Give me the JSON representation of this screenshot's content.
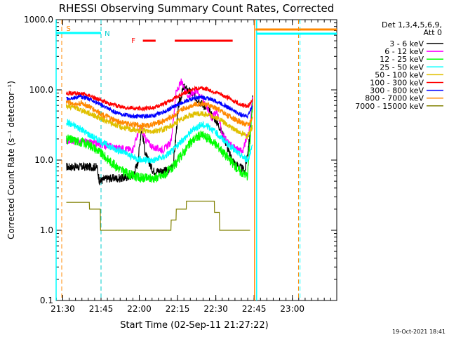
{
  "chart_data": {
    "type": "line",
    "title": "RHESSI Observing Summary Count Rates, Corrected",
    "xlabel": "Start Time (02-Sep-11 21:27:22)",
    "ylabel": "Corrected Count Rate (s⁻¹ detector⁻¹)",
    "yscale": "log",
    "ylim": [
      0.1,
      1000
    ],
    "xlim_min": [
      0,
      110
    ],
    "x_ticks": [
      {
        "label": "21:30",
        "min": 2.6
      },
      {
        "label": "21:45",
        "min": 17.6
      },
      {
        "label": "22:00",
        "min": 32.6
      },
      {
        "label": "22:15",
        "min": 47.6
      },
      {
        "label": "22:30",
        "min": 62.6
      },
      {
        "label": "22:45",
        "min": 77.6
      },
      {
        "label": "23:00",
        "min": 92.6
      }
    ],
    "y_ticks": [
      {
        "label": "0.1",
        "value": 0.1
      },
      {
        "label": "1.0",
        "value": 1
      },
      {
        "label": "10.0",
        "value": 10
      },
      {
        "label": "100.0",
        "value": 100
      },
      {
        "label": "1000.0",
        "value": 1000
      }
    ],
    "legend_header": [
      "Det 1,3,4,5,6,9,",
      "Att 0"
    ],
    "legend": [
      {
        "label": "3 - 6 keV",
        "color": "#000000"
      },
      {
        "label": "6 - 12 keV",
        "color": "#ff00ff"
      },
      {
        "label": "12 - 25 keV",
        "color": "#00ff00"
      },
      {
        "label": "25 - 50 keV",
        "color": "#00ffff"
      },
      {
        "label": "50 - 100 keV",
        "color": "#e0c000"
      },
      {
        "label": "100 - 300 keV",
        "color": "#ff0000"
      },
      {
        "label": "300 - 800 keV",
        "color": "#0000ff"
      },
      {
        "label": "800 - 7000 keV",
        "color": "#ff8800"
      },
      {
        "label": "7000 - 15000 keV",
        "color": "#808000"
      }
    ],
    "series": [
      {
        "name": "3 - 6 keV",
        "color": "#000000",
        "noise": 0.06,
        "points": [
          [
            4,
            8
          ],
          [
            16,
            8
          ],
          [
            17,
            5
          ],
          [
            20,
            5.5
          ],
          [
            26,
            5.5
          ],
          [
            30,
            6
          ],
          [
            32,
            9
          ],
          [
            33.5,
            30
          ],
          [
            35,
            12
          ],
          [
            38,
            7
          ],
          [
            44,
            7
          ],
          [
            46,
            9
          ],
          [
            48,
            60
          ],
          [
            50,
            110
          ],
          [
            53,
            90
          ],
          [
            56,
            70
          ],
          [
            58,
            60
          ],
          [
            62,
            40
          ],
          [
            64,
            30
          ],
          [
            66,
            20
          ],
          [
            68,
            12
          ],
          [
            70,
            9
          ],
          [
            72,
            8
          ],
          [
            74,
            7
          ],
          [
            76,
            22
          ],
          [
            77,
            80
          ]
        ]
      },
      {
        "name": "6 - 12 keV",
        "color": "#ff00ff",
        "noise": 0.05,
        "points": [
          [
            4,
            19
          ],
          [
            12,
            18
          ],
          [
            16,
            17
          ],
          [
            20,
            16
          ],
          [
            24,
            15
          ],
          [
            30,
            14
          ],
          [
            33,
            30
          ],
          [
            35,
            20
          ],
          [
            38,
            15
          ],
          [
            42,
            14
          ],
          [
            45,
            18
          ],
          [
            47,
            90
          ],
          [
            49,
            130
          ],
          [
            52,
            80
          ],
          [
            55,
            100
          ],
          [
            58,
            70
          ],
          [
            61,
            40
          ],
          [
            63,
            50
          ],
          [
            65,
            25
          ],
          [
            67,
            18
          ],
          [
            70,
            15
          ],
          [
            73,
            13
          ],
          [
            76,
            30
          ],
          [
            77,
            80
          ]
        ]
      },
      {
        "name": "12 - 25 keV",
        "color": "#00ff00",
        "noise": 0.07,
        "points": [
          [
            4,
            20
          ],
          [
            10,
            18
          ],
          [
            14,
            16
          ],
          [
            18,
            12
          ],
          [
            22,
            9
          ],
          [
            26,
            7
          ],
          [
            30,
            6
          ],
          [
            34,
            5.5
          ],
          [
            38,
            5.5
          ],
          [
            42,
            6
          ],
          [
            46,
            8
          ],
          [
            50,
            13
          ],
          [
            54,
            20
          ],
          [
            57,
            23
          ],
          [
            60,
            20
          ],
          [
            64,
            15
          ],
          [
            68,
            10
          ],
          [
            72,
            7
          ],
          [
            75,
            6
          ],
          [
            77,
            60
          ]
        ]
      },
      {
        "name": "25 - 50 keV",
        "color": "#00ffff",
        "noise": 0.05,
        "points": [
          [
            4,
            35
          ],
          [
            8,
            30
          ],
          [
            14,
            22
          ],
          [
            18,
            18
          ],
          [
            22,
            15
          ],
          [
            26,
            13
          ],
          [
            30,
            11
          ],
          [
            34,
            10
          ],
          [
            38,
            10
          ],
          [
            42,
            11
          ],
          [
            46,
            14
          ],
          [
            50,
            20
          ],
          [
            54,
            28
          ],
          [
            57,
            32
          ],
          [
            60,
            30
          ],
          [
            64,
            22
          ],
          [
            68,
            16
          ],
          [
            72,
            12
          ],
          [
            75,
            10
          ],
          [
            77,
            15
          ]
        ]
      },
      {
        "name": "50 - 100 keV",
        "color": "#e0c000",
        "noise": 0.04,
        "points": [
          [
            4,
            60
          ],
          [
            8,
            55
          ],
          [
            14,
            45
          ],
          [
            18,
            38
          ],
          [
            22,
            33
          ],
          [
            26,
            29
          ],
          [
            30,
            27
          ],
          [
            34,
            26
          ],
          [
            38,
            26
          ],
          [
            42,
            27
          ],
          [
            46,
            32
          ],
          [
            50,
            40
          ],
          [
            54,
            45
          ],
          [
            57,
            46
          ],
          [
            60,
            44
          ],
          [
            64,
            38
          ],
          [
            68,
            30
          ],
          [
            72,
            25
          ],
          [
            75,
            22
          ],
          [
            77,
            30
          ]
        ]
      },
      {
        "name": "100 - 300 keV",
        "color": "#ff0000",
        "noise": 0.03,
        "points": [
          [
            4,
            90
          ],
          [
            10,
            88
          ],
          [
            14,
            80
          ],
          [
            18,
            70
          ],
          [
            22,
            62
          ],
          [
            26,
            57
          ],
          [
            30,
            55
          ],
          [
            34,
            54
          ],
          [
            38,
            56
          ],
          [
            42,
            62
          ],
          [
            46,
            75
          ],
          [
            50,
            90
          ],
          [
            54,
            102
          ],
          [
            57,
            108
          ],
          [
            60,
            100
          ],
          [
            64,
            88
          ],
          [
            68,
            75
          ],
          [
            72,
            63
          ],
          [
            75,
            58
          ],
          [
            77,
            70
          ]
        ]
      },
      {
        "name": "300 - 800 keV",
        "color": "#0000ff",
        "noise": 0.03,
        "points": [
          [
            4,
            75
          ],
          [
            10,
            80
          ],
          [
            14,
            72
          ],
          [
            18,
            60
          ],
          [
            22,
            50
          ],
          [
            26,
            45
          ],
          [
            30,
            42
          ],
          [
            34,
            42
          ],
          [
            38,
            43
          ],
          [
            42,
            48
          ],
          [
            46,
            57
          ],
          [
            50,
            68
          ],
          [
            54,
            76
          ],
          [
            57,
            78
          ],
          [
            60,
            75
          ],
          [
            64,
            66
          ],
          [
            68,
            55
          ],
          [
            72,
            45
          ],
          [
            75,
            42
          ],
          [
            77,
            60
          ]
        ]
      },
      {
        "name": "800 - 7000 keV",
        "color": "#ff8800",
        "noise": 0.04,
        "points": [
          [
            4,
            68
          ],
          [
            8,
            62
          ],
          [
            10,
            65
          ],
          [
            14,
            55
          ],
          [
            18,
            45
          ],
          [
            22,
            38
          ],
          [
            26,
            34
          ],
          [
            30,
            32
          ],
          [
            34,
            31
          ],
          [
            38,
            32
          ],
          [
            42,
            36
          ],
          [
            46,
            43
          ],
          [
            50,
            54
          ],
          [
            54,
            62
          ],
          [
            57,
            64
          ],
          [
            60,
            60
          ],
          [
            64,
            52
          ],
          [
            68,
            42
          ],
          [
            72,
            35
          ],
          [
            75,
            32
          ],
          [
            77,
            38
          ]
        ]
      },
      {
        "name": "7000 - 15000 keV",
        "color": "#808000",
        "noise": 0.0,
        "steps": true,
        "points": [
          [
            4,
            2.5
          ],
          [
            13,
            2.5
          ],
          [
            13.1,
            2.0
          ],
          [
            17.3,
            2.0
          ],
          [
            17.4,
            1.0
          ],
          [
            45,
            1.0
          ],
          [
            45.1,
            1.4
          ],
          [
            47,
            1.4
          ],
          [
            47.1,
            2.0
          ],
          [
            51,
            2.0
          ],
          [
            51.1,
            2.6
          ],
          [
            62,
            2.6
          ],
          [
            62.1,
            1.8
          ],
          [
            64,
            1.8
          ],
          [
            64.1,
            1.0
          ],
          [
            76,
            1.0
          ]
        ]
      }
    ],
    "attenuator_labels": [
      {
        "text": "S",
        "min": 4,
        "color": "#ff8800"
      },
      {
        "text": "N",
        "min": 19,
        "color": "#00cccc"
      }
    ],
    "flare_label": {
      "text": "F",
      "color": "#ff0000"
    },
    "annotations_text": "19-Oct-2021 18:41"
  }
}
